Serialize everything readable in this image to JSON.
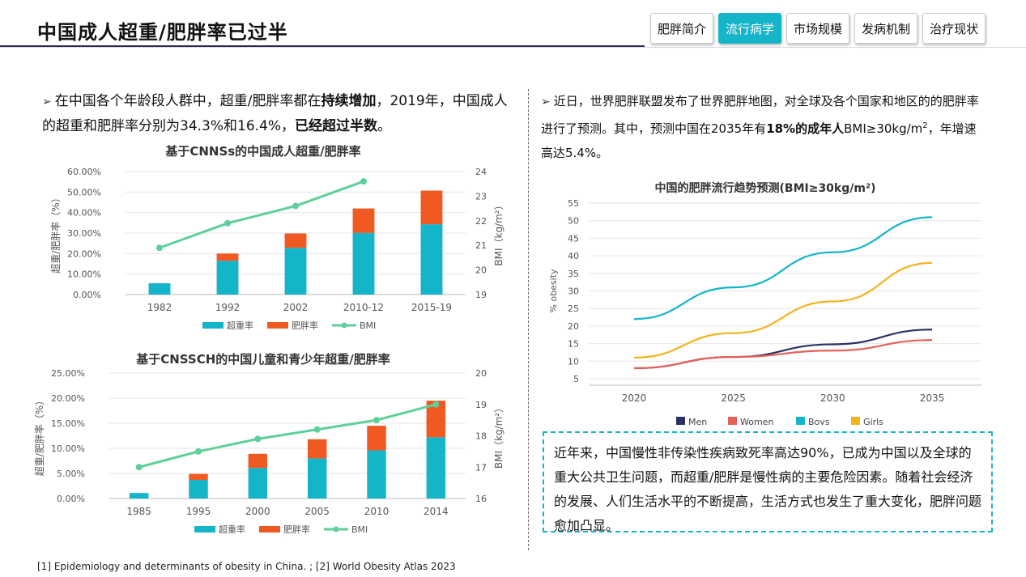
{
  "header": {
    "title": "中国成人超重/肥胖率已过半",
    "tabs": [
      {
        "label": "肥胖简介",
        "active": false
      },
      {
        "label": "流行病学",
        "active": true
      },
      {
        "label": "市场规模",
        "active": false
      },
      {
        "label": "发病机制",
        "active": false
      },
      {
        "label": "治疗现状",
        "active": false
      }
    ]
  },
  "left_text": {
    "s1": "在中国各个年龄段人群中，超重/肥胖率都在",
    "b1": "持续增加",
    "s2": "，2019年，中国成人的超重和肥胖率分别为34.3%和16.4%，",
    "b2": "已经超过半数",
    "s3": "。"
  },
  "right_text": {
    "s1": "近日，世界肥胖联盟发布了世界肥胖地图，对全球及各个国家和地区的的肥胖率进行了预测。其中，预测中国在2035年有",
    "b1": "18%的成年人",
    "s2": "BMI≥30kg/m",
    "sup": "2",
    "s3": "，年增速高达5.4%。"
  },
  "note": "近年来，中国慢性非传染性疾病致死率高达90%，已成为中国以及全球的重大公共卫生问题，而超重/肥胖是慢性病的主要危险因素。随着社会经济的发展、人们生活水平的不断提高，生活方式也发生了重大变化，肥胖问题愈加凸显。",
  "footnote": "[1] Epidemiology and determinants of obesity in China. ; [2] World Obesity Atlas 2023",
  "colors": {
    "overweight": "#14b4c9",
    "obese": "#f05a22",
    "bmi": "#5fcf9a",
    "men": "#2b3263",
    "women": "#e8605a",
    "boys": "#14b4c9",
    "girls": "#f2b41c"
  },
  "chart_data": [
    {
      "type": "bar",
      "title": "基于CNNSs的中国成人超重/肥胖率",
      "categories": [
        "1982",
        "1992",
        "2002",
        "2010-12",
        "2015-19"
      ],
      "series": [
        {
          "name": "超重率",
          "values": [
            5.5,
            16.5,
            22.8,
            30.1,
            34.3
          ]
        },
        {
          "name": "肥胖率",
          "values": [
            0,
            3.5,
            7.0,
            11.9,
            16.4
          ]
        }
      ],
      "line_series": {
        "name": "BMI",
        "values": [
          20.9,
          21.9,
          22.6,
          23.6,
          null
        ]
      },
      "ylabel": "超重/肥胖率（%）",
      "y2label": "BMI（kg/m²）",
      "ylim": [
        0,
        60
      ],
      "y2lim": [
        19,
        24
      ],
      "yticks": [
        "0.00%",
        "10.00%",
        "20.00%",
        "30.00%",
        "40.00%",
        "50.00%",
        "60.00%"
      ],
      "y2ticks": [
        "19",
        "20",
        "21",
        "22",
        "23",
        "24"
      ],
      "legend": [
        "超重率",
        "肥胖率",
        "BMI"
      ]
    },
    {
      "type": "bar",
      "title": "基于CNSSCH的中国儿童和青少年超重/肥胖率",
      "categories": [
        "1985",
        "1995",
        "2000",
        "2005",
        "2010",
        "2014"
      ],
      "series": [
        {
          "name": "超重率",
          "values": [
            1.1,
            3.7,
            6.1,
            8.0,
            9.6,
            12.2
          ]
        },
        {
          "name": "肥胖率",
          "values": [
            0,
            1.2,
            2.8,
            3.8,
            4.9,
            7.3
          ]
        }
      ],
      "line_series": {
        "name": "BMI",
        "values": [
          17.0,
          17.5,
          17.9,
          18.2,
          18.5,
          19.0
        ]
      },
      "ylabel": "超重/肥胖率（%）",
      "y2label": "BMI（kg/m²）",
      "ylim": [
        0,
        25
      ],
      "y2lim": [
        16,
        20
      ],
      "yticks": [
        "0.00%",
        "5.00%",
        "10.00%",
        "15.00%",
        "20.00%",
        "25.00%"
      ],
      "y2ticks": [
        "16",
        "17",
        "18",
        "19",
        "20"
      ],
      "legend": [
        "超重率",
        "肥胖率",
        "BMI"
      ]
    },
    {
      "type": "line",
      "title": "中国的肥胖流行趋势预测(BMI≥30kg/m²)",
      "x": [
        2020,
        2025,
        2030,
        2035
      ],
      "series": [
        {
          "name": "Men",
          "values": [
            8.0,
            11.2,
            14.8,
            19.0
          ]
        },
        {
          "name": "Women",
          "values": [
            8.0,
            11.2,
            13.0,
            16.0
          ]
        },
        {
          "name": "Boys",
          "values": [
            22.0,
            31.0,
            41.0,
            51.0
          ]
        },
        {
          "name": "Girls",
          "values": [
            11.0,
            18.0,
            27.0,
            38.0
          ]
        }
      ],
      "ylabel": "% obesity",
      "ylim": [
        5,
        55
      ],
      "yticks": [
        "5",
        "10",
        "15",
        "20",
        "25",
        "30",
        "35",
        "40",
        "45",
        "50",
        "55"
      ],
      "xticks": [
        "2020",
        "2025",
        "2030",
        "2035"
      ]
    }
  ]
}
